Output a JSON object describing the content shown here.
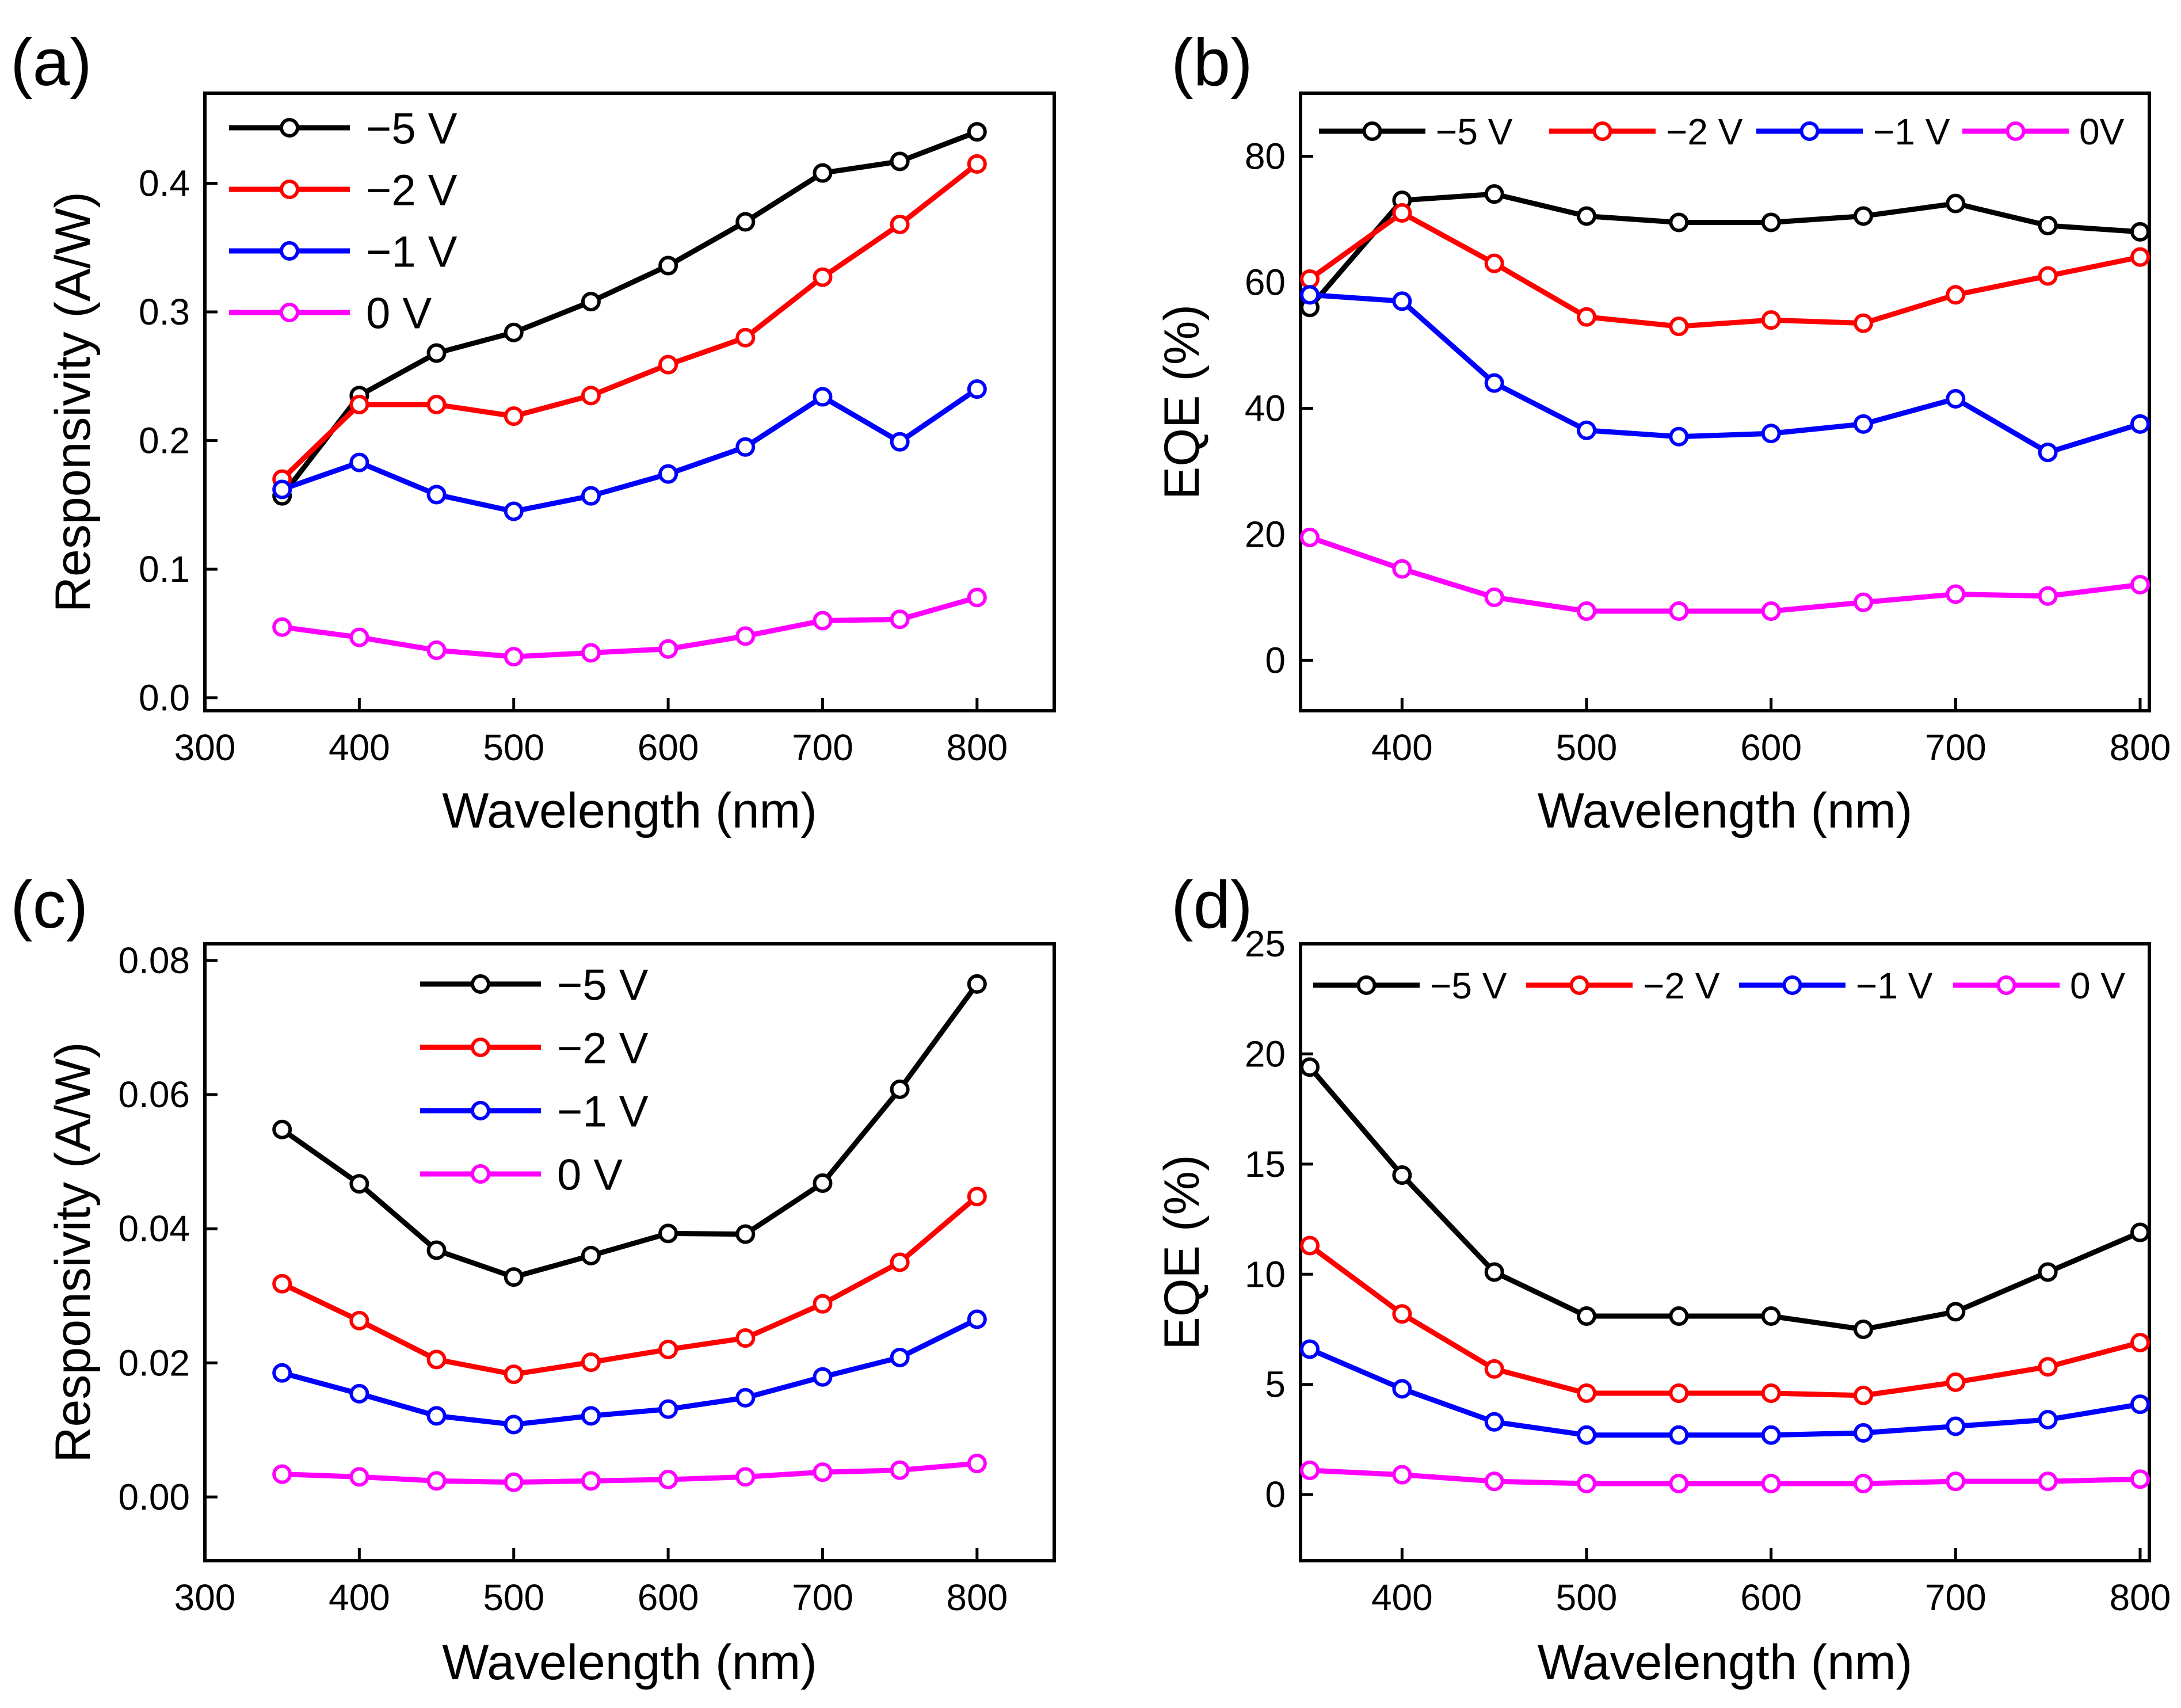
{
  "chart_data": [
    {
      "panel_label": "(a)",
      "type": "line",
      "xlabel": "Wavelength (nm)",
      "ylabel": "Responsivity (A/W)",
      "xlim": [
        300,
        850
      ],
      "ylim": [
        -0.01,
        0.47
      ],
      "xticks": [
        300,
        400,
        500,
        600,
        700,
        800
      ],
      "yticks": [
        0.0,
        0.1,
        0.2,
        0.3,
        0.4
      ],
      "ytick_labels": [
        "0.0",
        "0.1",
        "0.2",
        "0.3",
        "0.4"
      ],
      "legend_position": "top-left",
      "legend_layout": "vertical",
      "x": [
        350,
        400,
        450,
        500,
        550,
        600,
        650,
        700,
        750,
        800
      ],
      "series": [
        {
          "name": "−5 V",
          "color": "#000000",
          "values": [
            0.157,
            0.235,
            0.268,
            0.284,
            0.308,
            0.336,
            0.37,
            0.408,
            0.417,
            0.44
          ]
        },
        {
          "name": "−2 V",
          "color": "#ff0000",
          "values": [
            0.17,
            0.228,
            0.228,
            0.219,
            0.235,
            0.259,
            0.28,
            0.327,
            0.368,
            0.415
          ]
        },
        {
          "name": "−1 V",
          "color": "#0000ff",
          "values": [
            0.162,
            0.183,
            0.158,
            0.145,
            0.157,
            0.174,
            0.195,
            0.234,
            0.199,
            0.24
          ]
        },
        {
          "name": "0 V",
          "color": "#ff00ff",
          "values": [
            0.055,
            0.047,
            0.037,
            0.032,
            0.035,
            0.038,
            0.048,
            0.06,
            0.061,
            0.078
          ]
        }
      ]
    },
    {
      "panel_label": "(b)",
      "type": "line",
      "xlabel": "Wavelength (nm)",
      "ylabel": "EQE (%)",
      "xlim": [
        345,
        805
      ],
      "ylim": [
        -8,
        90
      ],
      "xticks": [
        400,
        500,
        600,
        700,
        800
      ],
      "yticks": [
        0,
        20,
        40,
        60,
        80
      ],
      "ytick_labels": [
        "0",
        "20",
        "40",
        "60",
        "80"
      ],
      "legend_position": "top",
      "legend_layout": "horizontal",
      "x": [
        350,
        400,
        450,
        500,
        550,
        600,
        650,
        700,
        750,
        800
      ],
      "series": [
        {
          "name": "−5 V",
          "color": "#000000",
          "values": [
            56,
            73,
            74,
            70.5,
            69.5,
            69.5,
            70.5,
            72.5,
            69,
            68
          ]
        },
        {
          "name": "−2 V",
          "color": "#ff0000",
          "values": [
            60.5,
            71,
            63,
            54.5,
            53,
            54,
            53.5,
            58,
            61,
            64
          ]
        },
        {
          "name": "−1 V",
          "color": "#0000ff",
          "values": [
            58,
            57,
            44,
            36.5,
            35.5,
            36,
            37.5,
            41.5,
            33,
            37.5
          ]
        },
        {
          "name": "0V",
          "color": "#ff00ff",
          "values": [
            19.5,
            14.5,
            10,
            7.8,
            7.8,
            7.8,
            9.2,
            10.5,
            10.2,
            12
          ]
        }
      ]
    },
    {
      "panel_label": "(c)",
      "type": "line",
      "xlabel": "Wavelength (nm)",
      "ylabel": "Responsivity (A/W)",
      "xlim": [
        300,
        850
      ],
      "ylim": [
        -0.0095,
        0.0825
      ],
      "xticks": [
        300,
        400,
        500,
        600,
        700,
        800
      ],
      "yticks": [
        0.0,
        0.02,
        0.04,
        0.06,
        0.08
      ],
      "ytick_labels": [
        "0.00",
        "0.02",
        "0.04",
        "0.06",
        "0.08"
      ],
      "legend_position": "top-center",
      "legend_layout": "vertical",
      "x": [
        350,
        400,
        450,
        500,
        550,
        600,
        650,
        700,
        750,
        800
      ],
      "series": [
        {
          "name": "−5 V",
          "color": "#000000",
          "values": [
            0.0548,
            0.0467,
            0.0368,
            0.0328,
            0.036,
            0.0393,
            0.0392,
            0.0468,
            0.0608,
            0.0765
          ]
        },
        {
          "name": "−2 V",
          "color": "#ff0000",
          "values": [
            0.0318,
            0.0263,
            0.0205,
            0.0183,
            0.0201,
            0.022,
            0.0237,
            0.0288,
            0.035,
            0.0448
          ]
        },
        {
          "name": "−1 V",
          "color": "#0000ff",
          "values": [
            0.0185,
            0.0154,
            0.0121,
            0.0108,
            0.0121,
            0.0131,
            0.0148,
            0.0179,
            0.0208,
            0.0265
          ]
        },
        {
          "name": "0 V",
          "color": "#ff00ff",
          "values": [
            0.0034,
            0.003,
            0.0024,
            0.0022,
            0.0024,
            0.0026,
            0.003,
            0.0037,
            0.004,
            0.005
          ]
        }
      ]
    },
    {
      "panel_label": "(d)",
      "type": "line",
      "xlabel": "Wavelength (nm)",
      "ylabel": "EQE (%)",
      "xlim": [
        345,
        805
      ],
      "ylim": [
        -3,
        25
      ],
      "xticks": [
        400,
        500,
        600,
        700,
        800
      ],
      "yticks": [
        0,
        5,
        10,
        15,
        20,
        25
      ],
      "ytick_labels": [
        "0",
        "5",
        "10",
        "15",
        "20",
        "25"
      ],
      "legend_position": "top",
      "legend_layout": "horizontal",
      "x": [
        350,
        400,
        450,
        500,
        550,
        600,
        650,
        700,
        750,
        800
      ],
      "series": [
        {
          "name": "−5 V",
          "color": "#000000",
          "values": [
            19.4,
            14.5,
            10.1,
            8.1,
            8.1,
            8.1,
            7.5,
            8.3,
            10.1,
            11.9
          ]
        },
        {
          "name": "−2 V",
          "color": "#ff0000",
          "values": [
            11.3,
            8.2,
            5.7,
            4.6,
            4.6,
            4.6,
            4.5,
            5.1,
            5.8,
            6.9
          ]
        },
        {
          "name": "−1 V",
          "color": "#0000ff",
          "values": [
            6.6,
            4.8,
            3.3,
            2.7,
            2.7,
            2.7,
            2.8,
            3.1,
            3.4,
            4.1
          ]
        },
        {
          "name": "0 V",
          "color": "#ff00ff",
          "values": [
            1.1,
            0.9,
            0.6,
            0.5,
            0.5,
            0.5,
            0.5,
            0.6,
            0.6,
            0.7
          ]
        }
      ]
    }
  ]
}
